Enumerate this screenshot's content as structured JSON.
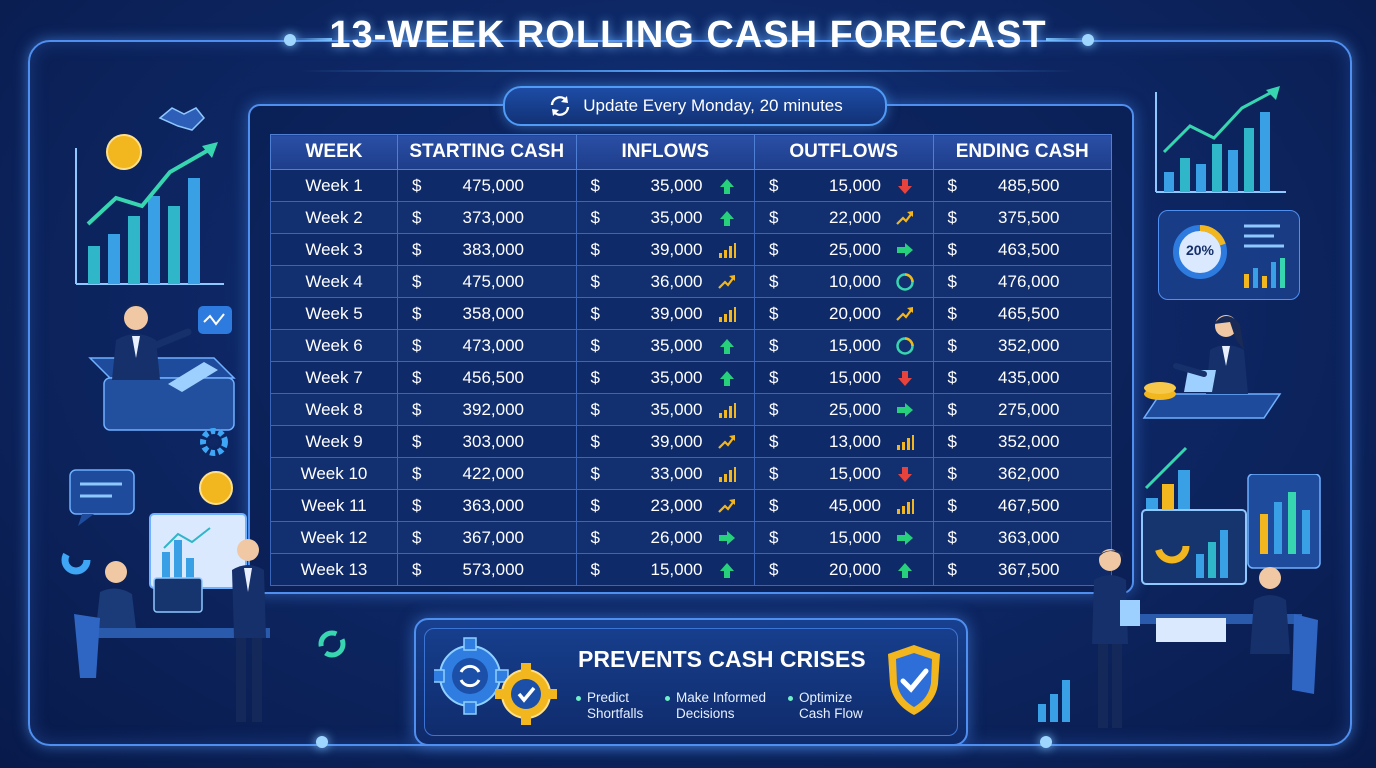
{
  "title": "13-WEEK ROLLING CASH FORECAST",
  "update_text": "Update Every Monday, 20 minutes",
  "table": {
    "headers": [
      "WEEK",
      "STARTING CASH",
      "INFLOWS",
      "OUTFLOWS",
      "ENDING CASH"
    ],
    "currency": "$",
    "rows": [
      {
        "week": "Week 1",
        "start": "475,000",
        "in": "35,000",
        "in_icon": "arrow-up-icon",
        "out": "15,000",
        "out_icon": "arrow-down-icon",
        "end": "485,500"
      },
      {
        "week": "Week 2",
        "start": "373,000",
        "in": "35,000",
        "in_icon": "arrow-up-icon",
        "out": "22,000",
        "out_icon": "trend-up-icon",
        "end": "375,500"
      },
      {
        "week": "Week 3",
        "start": "383,000",
        "in": "39,000",
        "in_icon": "bar-chart-icon",
        "out": "25,000",
        "out_icon": "arrow-right-icon",
        "end": "463,500"
      },
      {
        "week": "Week 4",
        "start": "475,000",
        "in": "36,000",
        "in_icon": "trend-up-icon",
        "out": "10,000",
        "out_icon": "gauge-icon",
        "end": "476,000"
      },
      {
        "week": "Week 5",
        "start": "358,000",
        "in": "39,000",
        "in_icon": "bar-chart-icon",
        "out": "20,000",
        "out_icon": "trend-up-icon",
        "end": "465,500"
      },
      {
        "week": "Week 6",
        "start": "473,000",
        "in": "35,000",
        "in_icon": "arrow-up-icon",
        "out": "15,000",
        "out_icon": "gauge-icon",
        "end": "352,000"
      },
      {
        "week": "Week 7",
        "start": "456,500",
        "in": "35,000",
        "in_icon": "arrow-up-icon",
        "out": "15,000",
        "out_icon": "arrow-down-icon",
        "end": "435,000"
      },
      {
        "week": "Week 8",
        "start": "392,000",
        "in": "35,000",
        "in_icon": "bar-chart-icon",
        "out": "25,000",
        "out_icon": "arrow-right-icon",
        "end": "275,000"
      },
      {
        "week": "Week 9",
        "start": "303,000",
        "in": "39,000",
        "in_icon": "trend-up-icon",
        "out": "13,000",
        "out_icon": "bar-chart-icon",
        "end": "352,000"
      },
      {
        "week": "Week 10",
        "start": "422,000",
        "in": "33,000",
        "in_icon": "bar-chart-icon",
        "out": "15,000",
        "out_icon": "arrow-down-icon",
        "end": "362,000"
      },
      {
        "week": "Week 11",
        "start": "363,000",
        "in": "23,000",
        "in_icon": "trend-up-icon",
        "out": "45,000",
        "out_icon": "bar-chart-icon",
        "end": "467,500"
      },
      {
        "week": "Week 12",
        "start": "367,000",
        "in": "26,000",
        "in_icon": "arrow-right-icon",
        "out": "15,000",
        "out_icon": "arrow-right-icon",
        "end": "363,000"
      },
      {
        "week": "Week 13",
        "start": "573,000",
        "in": "15,000",
        "in_icon": "arrow-up-icon",
        "out": "20,000",
        "out_icon": "arrow-up-icon",
        "end": "367,500"
      }
    ]
  },
  "callout": {
    "title": "PREVENTS CASH CRISES",
    "bullets": [
      "Predict Shortfalls",
      "Make Informed Decisions",
      "Optimize Cash Flow"
    ]
  },
  "dashboard_badge": "20%",
  "colors": {
    "accent": "#4f8ff0",
    "green": "#27d07a",
    "red": "#e8423c",
    "gold": "#f2b61e"
  }
}
